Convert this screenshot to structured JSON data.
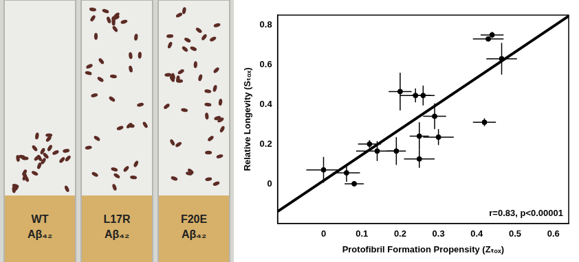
{
  "photo": {
    "vials": [
      {
        "mutant": "WT",
        "peptide": "Aβ₄₂"
      },
      {
        "mutant": "L17R",
        "peptide": "Aβ₄₂"
      },
      {
        "mutant": "F20E",
        "peptide": "Aβ₄₂"
      }
    ]
  },
  "chart_data": {
    "type": "scatter",
    "x_label": "Protofibril Formation Propensity (Zₜₒₓ)",
    "y_label": "Relative Longevity (Sₜₒₓ)",
    "annotation": "r=0.83, p<0.00001",
    "xlim": [
      -0.12,
      0.64
    ],
    "xticks": [
      0,
      0.1,
      0.2,
      0.3,
      0.4,
      0.5,
      0.6
    ],
    "ylim": [
      -0.2,
      0.85
    ],
    "yticks": [
      0,
      0.2,
      0.4,
      0.6,
      0.8
    ],
    "grid": false,
    "series": [
      {
        "color": "#000000",
        "marker": "circle",
        "x": [
          0.0,
          0.06,
          0.08,
          0.12,
          0.14,
          0.19,
          0.2,
          0.24,
          0.26,
          0.25,
          0.25,
          0.29,
          0.3,
          0.42,
          0.44,
          0.43,
          0.465
        ],
        "values": [
          0.07,
          0.055,
          0.0,
          0.2,
          0.165,
          0.165,
          0.465,
          0.445,
          0.445,
          0.24,
          0.125,
          0.34,
          0.235,
          0.31,
          0.75,
          0.73,
          0.63
        ],
        "x_errors": [
          0.045,
          0.035,
          0.025,
          0.03,
          0.055,
          0.025,
          0.03,
          0.04,
          0.03,
          0.025,
          0.04,
          0.03,
          0.04,
          0.03,
          0.03,
          0.04,
          0.04
        ],
        "y_errors": [
          0.065,
          0.045,
          0.01,
          0.02,
          0.05,
          0.07,
          0.095,
          0.035,
          0.05,
          0.07,
          0.045,
          0.065,
          0.04,
          0.02,
          0.015,
          0.01,
          0.08
        ]
      },
      {
        "type": "line",
        "color": "#000000",
        "line_style": "solid",
        "x": [
          -0.12,
          0.64
        ],
        "values": [
          -0.14,
          0.845
        ]
      }
    ]
  }
}
